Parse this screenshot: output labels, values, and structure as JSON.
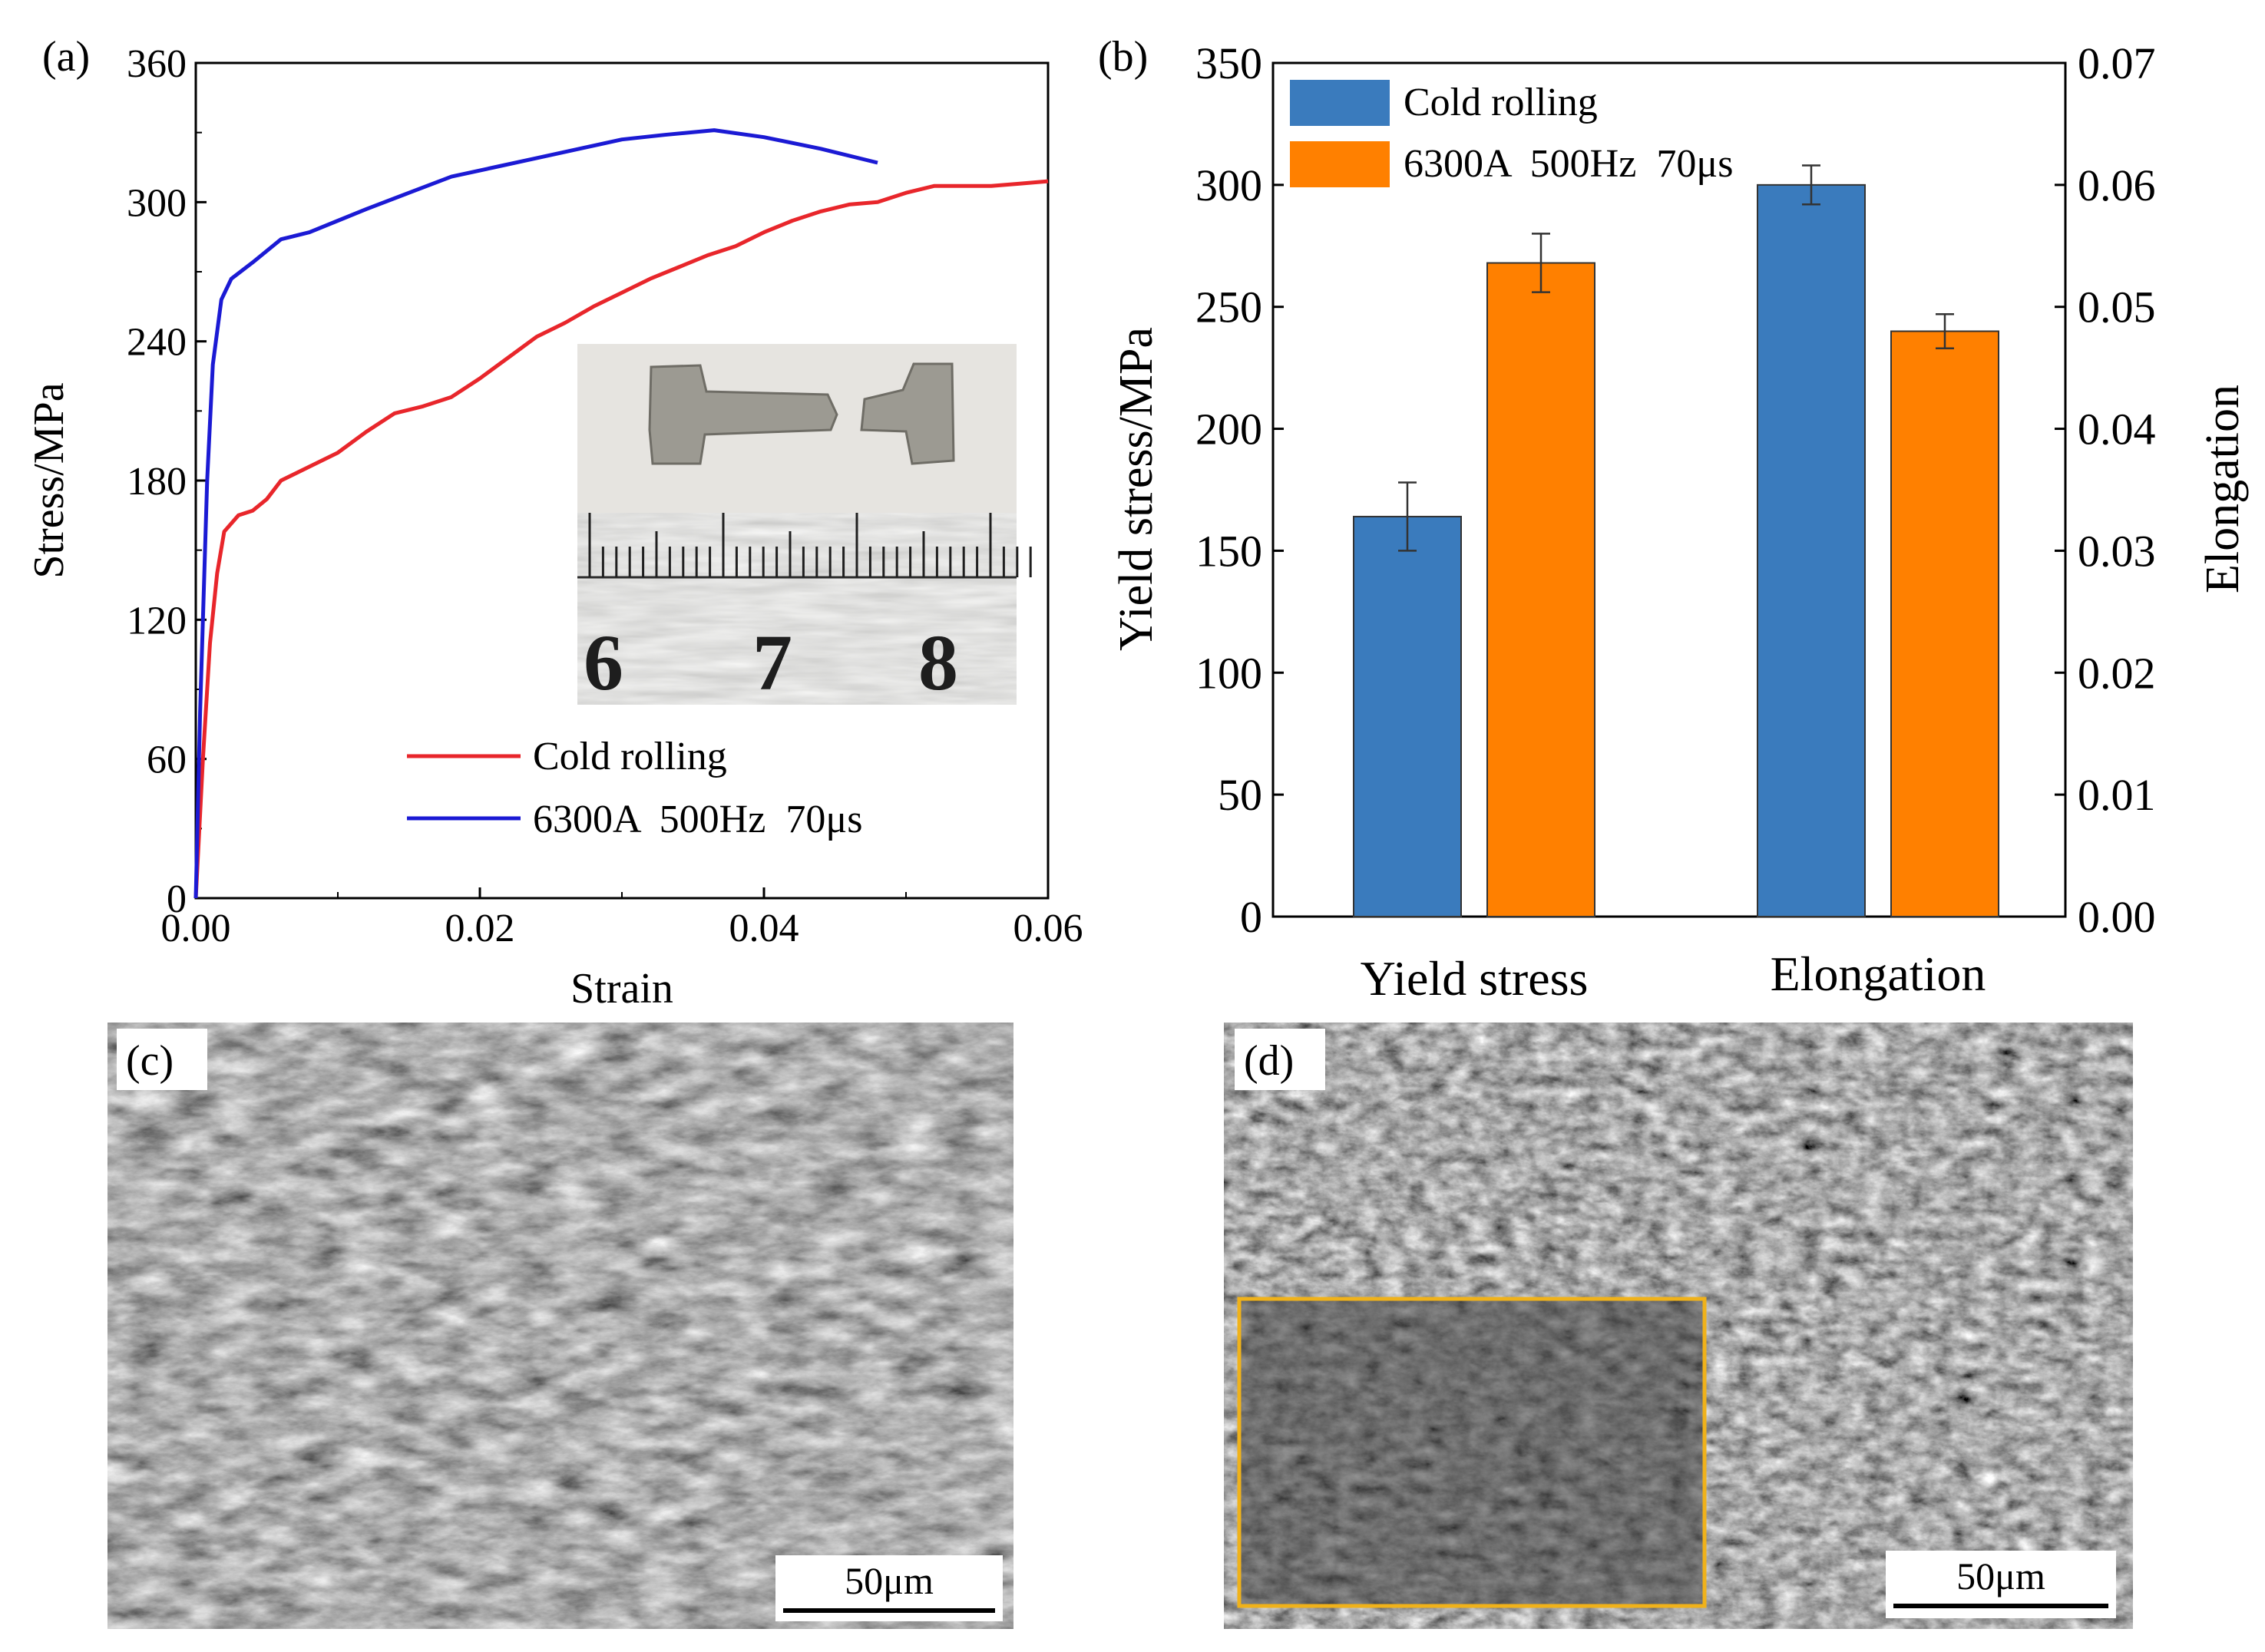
{
  "panels": {
    "a": {
      "label": "(a)",
      "chart_data": {
        "type": "line",
        "xlabel": "Strain",
        "ylabel": "Stress/MPa",
        "xlim": [
          0,
          0.06
        ],
        "ylim": [
          0,
          360
        ],
        "x_ticks": [
          "0.00",
          "0.02",
          "0.04",
          "0.06"
        ],
        "y_ticks": [
          "0",
          "60",
          "120",
          "180",
          "240",
          "300",
          "360"
        ],
        "series": [
          {
            "name": "Cold rolling",
            "color": "#e8262b",
            "points": [
              [
                0,
                0
              ],
              [
                0.0005,
                60
              ],
              [
                0.001,
                110
              ],
              [
                0.0015,
                140
              ],
              [
                0.002,
                158
              ],
              [
                0.003,
                165
              ],
              [
                0.004,
                167
              ],
              [
                0.005,
                172
              ],
              [
                0.006,
                180
              ],
              [
                0.008,
                186
              ],
              [
                0.01,
                192
              ],
              [
                0.012,
                201
              ],
              [
                0.014,
                209
              ],
              [
                0.016,
                212
              ],
              [
                0.018,
                216
              ],
              [
                0.02,
                224
              ],
              [
                0.022,
                233
              ],
              [
                0.024,
                242
              ],
              [
                0.026,
                248
              ],
              [
                0.028,
                255
              ],
              [
                0.03,
                261
              ],
              [
                0.032,
                267
              ],
              [
                0.034,
                272
              ],
              [
                0.036,
                277
              ],
              [
                0.038,
                281
              ],
              [
                0.04,
                287
              ],
              [
                0.042,
                292
              ],
              [
                0.044,
                296
              ],
              [
                0.046,
                299
              ],
              [
                0.048,
                300
              ],
              [
                0.05,
                304
              ],
              [
                0.052,
                307
              ],
              [
                0.054,
                307
              ],
              [
                0.056,
                307
              ],
              [
                0.058,
                308
              ],
              [
                0.06,
                309
              ]
            ]
          },
          {
            "name": "6300A  500Hz  70μs",
            "color": "#1b1ad4",
            "points": [
              [
                0,
                0
              ],
              [
                0.0003,
                80
              ],
              [
                0.0008,
                180
              ],
              [
                0.0012,
                230
              ],
              [
                0.0018,
                258
              ],
              [
                0.0025,
                267
              ],
              [
                0.004,
                274
              ],
              [
                0.006,
                284
              ],
              [
                0.008,
                287
              ],
              [
                0.01,
                292
              ],
              [
                0.012,
                297
              ],
              [
                0.015,
                304
              ],
              [
                0.018,
                311
              ],
              [
                0.021,
                315
              ],
              [
                0.024,
                319
              ],
              [
                0.027,
                323
              ],
              [
                0.03,
                327
              ],
              [
                0.033,
                329
              ],
              [
                0.0365,
                331
              ],
              [
                0.04,
                328
              ],
              [
                0.044,
                323
              ],
              [
                0.048,
                317
              ]
            ]
          }
        ],
        "legend": [
          "Cold rolling",
          "6300A  500Hz  70μs"
        ],
        "legend_position": "bottom-right",
        "inset": {
          "description": "photo of fractured tensile specimen over ruler",
          "ruler_labels": [
            "6",
            "7",
            "8"
          ]
        }
      }
    },
    "b": {
      "label": "(b)",
      "chart_data": {
        "type": "bar",
        "categories": [
          "Yield stress",
          "Elongation"
        ],
        "ylabel": "Yield stress/MPa",
        "y2label": "Elongation",
        "ylim": [
          0,
          350
        ],
        "y2lim": [
          0,
          0.07
        ],
        "y_ticks": [
          "0",
          "50",
          "100",
          "150",
          "200",
          "250",
          "300",
          "350"
        ],
        "y2_ticks": [
          "0.00",
          "0.01",
          "0.02",
          "0.03",
          "0.04",
          "0.05",
          "0.06",
          "0.07"
        ],
        "series": [
          {
            "name": "Cold rolling",
            "color": "#3a7bbd",
            "values": [
              164,
              0.06
            ],
            "errors": [
              14,
              0.0016
            ],
            "axes": [
              "left",
              "right"
            ]
          },
          {
            "name": "6300A  500Hz  70μs",
            "color": "#ff8000",
            "values": [
              268,
              0.048
            ],
            "errors": [
              12,
              0.0014
            ],
            "axes": [
              "left",
              "right"
            ]
          }
        ],
        "legend": [
          "Cold rolling",
          "6300A  500Hz  70μs"
        ],
        "legend_position": "top-left"
      }
    },
    "c": {
      "label": "(c)",
      "scale_bar": "50μm"
    },
    "d": {
      "label": "(d)",
      "scale_bar": "50μm"
    }
  },
  "colors": {
    "cold_rolling_line": "#e8262b",
    "electropulse_line": "#1b1ad4",
    "cold_rolling_bar": "#3a7bbd",
    "electropulse_bar": "#ff8000",
    "inset_frame": "#f0b21a"
  }
}
